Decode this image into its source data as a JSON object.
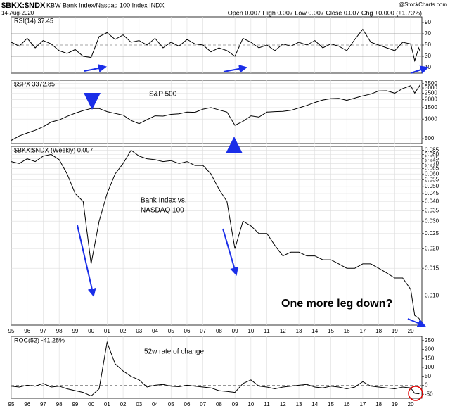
{
  "header": {
    "symbol": "$BKX:$NDX",
    "name": "KBW Bank Index/Nasdaq 100 Index INDX",
    "date": "14-Aug-2020",
    "source": "@StockCharts.com",
    "quote": "Open 0.007 High 0.007 Low 0.007 Close 0.007 Chg +0.000 (+1.73%)"
  },
  "chart_data": [
    {
      "type": "line",
      "label": "RSI(14) 37.45",
      "color": "#000000",
      "x": [
        1995,
        1995.5,
        1996,
        1996.5,
        1997,
        1997.5,
        1998,
        1998.5,
        1999,
        1999.5,
        2000,
        2000.5,
        2001,
        2001.5,
        2002,
        2002.5,
        2003,
        2003.5,
        2004,
        2004.5,
        2005,
        2005.5,
        2006,
        2006.5,
        2007,
        2007.5,
        2008,
        2008.5,
        2009,
        2009.5,
        2010,
        2010.5,
        2011,
        2011.5,
        2012,
        2012.5,
        2013,
        2013.5,
        2014,
        2014.5,
        2015,
        2015.5,
        2016,
        2016.5,
        2017,
        2017.5,
        2018,
        2018.5,
        2019,
        2019.5,
        2020,
        2020.25,
        2020.5,
        2020.6
      ],
      "values": [
        55,
        48,
        62,
        45,
        58,
        52,
        40,
        35,
        42,
        30,
        28,
        65,
        72,
        60,
        68,
        55,
        58,
        50,
        62,
        45,
        55,
        48,
        60,
        52,
        50,
        38,
        45,
        40,
        30,
        62,
        55,
        45,
        50,
        40,
        52,
        48,
        55,
        50,
        58,
        45,
        52,
        48,
        40,
        60,
        78,
        55,
        50,
        45,
        40,
        55,
        52,
        22,
        45,
        37.45
      ],
      "ylim": [
        0,
        100
      ],
      "yticks": [
        10,
        30,
        50,
        70,
        90
      ],
      "grid_values": [
        30,
        50,
        70
      ]
    },
    {
      "type": "line",
      "label": "$SPX 3372.85",
      "color": "#000000",
      "log": true,
      "x": [
        1995,
        1995.5,
        1996,
        1996.5,
        1997,
        1997.5,
        1998,
        1998.5,
        1999,
        1999.5,
        2000,
        2000.5,
        2001,
        2001.5,
        2002,
        2002.5,
        2003,
        2003.5,
        2004,
        2004.5,
        2005,
        2005.5,
        2006,
        2006.5,
        2007,
        2007.5,
        2008,
        2008.5,
        2009,
        2009.5,
        2010,
        2010.5,
        2011,
        2011.5,
        2012,
        2012.5,
        2013,
        2013.5,
        2014,
        2014.5,
        2015,
        2015.5,
        2016,
        2016.5,
        2017,
        2017.5,
        2018,
        2018.5,
        2019,
        2019.5,
        2020,
        2020.25,
        2020.5,
        2020.6
      ],
      "values": [
        470,
        550,
        610,
        670,
        760,
        900,
        970,
        1100,
        1230,
        1350,
        1450,
        1450,
        1300,
        1220,
        1150,
        950,
        850,
        980,
        1120,
        1110,
        1180,
        1200,
        1280,
        1270,
        1420,
        1500,
        1380,
        1280,
        800,
        920,
        1120,
        1070,
        1280,
        1300,
        1310,
        1360,
        1480,
        1620,
        1800,
        1960,
        2060,
        2080,
        1940,
        2100,
        2270,
        2420,
        2700,
        2720,
        2500,
        2940,
        3250,
        2500,
        3100,
        3372.85
      ],
      "ylim": [
        420,
        3950
      ],
      "yticks": [
        500,
        1000,
        1500,
        2000,
        2500,
        3000,
        3500
      ],
      "annotations": [
        {
          "text": "S&P 500",
          "color": "#000000"
        }
      ]
    },
    {
      "type": "line",
      "label": "$BKX:$NDX (Weekly) 0.007",
      "color": "#000000",
      "log": true,
      "x": [
        1995,
        1995.5,
        1996,
        1996.5,
        1997,
        1997.5,
        1998,
        1998.5,
        1999,
        1999.5,
        2000,
        2000.5,
        2001,
        2001.5,
        2002,
        2002.5,
        2003,
        2003.5,
        2004,
        2004.5,
        2005,
        2005.5,
        2006,
        2006.5,
        2007,
        2007.5,
        2008,
        2008.5,
        2009,
        2009.5,
        2010,
        2010.5,
        2011,
        2011.5,
        2012,
        2012.5,
        2013,
        2013.5,
        2014,
        2014.5,
        2015,
        2015.5,
        2016,
        2016.5,
        2017,
        2017.5,
        2018,
        2018.5,
        2019,
        2019.5,
        2020,
        2020.25,
        2020.5,
        2020.6
      ],
      "values": [
        0.072,
        0.07,
        0.075,
        0.072,
        0.078,
        0.08,
        0.074,
        0.06,
        0.045,
        0.04,
        0.016,
        0.03,
        0.045,
        0.06,
        0.07,
        0.085,
        0.078,
        0.075,
        0.074,
        0.072,
        0.073,
        0.07,
        0.072,
        0.068,
        0.068,
        0.06,
        0.048,
        0.04,
        0.02,
        0.03,
        0.028,
        0.025,
        0.025,
        0.021,
        0.018,
        0.019,
        0.019,
        0.018,
        0.018,
        0.017,
        0.017,
        0.016,
        0.015,
        0.015,
        0.016,
        0.016,
        0.015,
        0.014,
        0.013,
        0.013,
        0.011,
        0.0075,
        0.0072,
        0.007
      ],
      "ylim": [
        0.0065,
        0.09
      ],
      "yticks": [
        0.085,
        {
          "value": 0.08,
          "label": "0.080"
        },
        0.075,
        {
          "value": 0.07,
          "label": "0.070"
        },
        0.065,
        {
          "value": 0.06,
          "label": "0.060"
        },
        0.055,
        {
          "value": 0.05,
          "label": "0.050"
        },
        0.045,
        {
          "value": 0.04,
          "label": "0.040"
        },
        0.035,
        {
          "value": 0.03,
          "label": "0.030"
        },
        0.025,
        {
          "value": 0.02,
          "label": "0.020"
        },
        0.015,
        {
          "value": 0.01,
          "label": "0.010"
        }
      ],
      "xlim": [
        1995,
        2020.7
      ],
      "xticks": [
        {
          "value": 1995,
          "label": "95"
        },
        {
          "value": 1996,
          "label": "96"
        },
        {
          "value": 1997,
          "label": "97"
        },
        {
          "value": 1998,
          "label": "98"
        },
        {
          "value": 1999,
          "label": "99"
        },
        {
          "value": 2000,
          "label": "00"
        },
        {
          "value": 2001,
          "label": "01"
        },
        {
          "value": 2002,
          "label": "02"
        },
        {
          "value": 2003,
          "label": "03"
        },
        {
          "value": 2004,
          "label": "04"
        },
        {
          "value": 2005,
          "label": "05"
        },
        {
          "value": 2006,
          "label": "06"
        },
        {
          "value": 2007,
          "label": "07"
        },
        {
          "value": 2008,
          "label": "08"
        },
        {
          "value": 2009,
          "label": "09"
        },
        {
          "value": 2010,
          "label": "10"
        },
        {
          "value": 2011,
          "label": "11"
        },
        {
          "value": 2012,
          "label": "12"
        },
        {
          "value": 2013,
          "label": "13"
        },
        {
          "value": 2014,
          "label": "14"
        },
        {
          "value": 2015,
          "label": "15"
        },
        {
          "value": 2016,
          "label": "16"
        },
        {
          "value": 2017,
          "label": "17"
        },
        {
          "value": 2018,
          "label": "18"
        },
        {
          "value": 2019,
          "label": "19"
        },
        {
          "value": 2020,
          "label": "20"
        }
      ],
      "annotations": [
        {
          "text": "Bank Index vs.",
          "color": "#000000"
        },
        {
          "text": "NASDAQ 100",
          "color": "#000000"
        },
        {
          "text": "One more leg down?",
          "color": "#e00000"
        }
      ]
    },
    {
      "type": "line",
      "label": "ROC(52) -41.28%",
      "color": "#000000",
      "x": [
        1995,
        1995.5,
        1996,
        1996.5,
        1997,
        1997.5,
        1998,
        1998.5,
        1999,
        1999.5,
        2000,
        2000.5,
        2001,
        2001.5,
        2002,
        2002.5,
        2003,
        2003.5,
        2004,
        2004.5,
        2005,
        2005.5,
        2006,
        2006.5,
        2007,
        2007.5,
        2008,
        2008.5,
        2009,
        2009.5,
        2010,
        2010.5,
        2011,
        2011.5,
        2012,
        2012.5,
        2013,
        2013.5,
        2014,
        2014.5,
        2015,
        2015.5,
        2016,
        2016.5,
        2017,
        2017.5,
        2018,
        2018.5,
        2019,
        2019.5,
        2020,
        2020.25,
        2020.5,
        2020.6
      ],
      "values": [
        -5,
        -10,
        0,
        -5,
        10,
        -10,
        -5,
        -20,
        -30,
        -40,
        -60,
        -20,
        240,
        120,
        80,
        50,
        30,
        -10,
        0,
        5,
        -5,
        -8,
        0,
        -5,
        -10,
        -15,
        -30,
        -35,
        -40,
        10,
        30,
        -5,
        -10,
        -20,
        -10,
        -5,
        0,
        5,
        -10,
        -15,
        -5,
        -10,
        -20,
        -10,
        20,
        -5,
        -10,
        -15,
        -20,
        -10,
        -15,
        -45,
        -48,
        -41.28
      ],
      "ylim": [
        -73,
        273
      ],
      "yticks": [
        -50,
        0,
        50,
        100,
        150,
        200,
        250
      ],
      "grid_values": [
        0
      ],
      "xlim": [
        1995,
        2020.7
      ],
      "xticks": [
        {
          "value": 1995,
          "label": "95"
        },
        {
          "value": 1996,
          "label": "96"
        },
        {
          "value": 1997,
          "label": "97"
        },
        {
          "value": 1998,
          "label": "98"
        },
        {
          "value": 1999,
          "label": "99"
        },
        {
          "value": 2000,
          "label": "00"
        },
        {
          "value": 2001,
          "label": "01"
        },
        {
          "value": 2002,
          "label": "02"
        },
        {
          "value": 2003,
          "label": "03"
        },
        {
          "value": 2004,
          "label": "04"
        },
        {
          "value": 2005,
          "label": "05"
        },
        {
          "value": 2006,
          "label": "06"
        },
        {
          "value": 2007,
          "label": "07"
        },
        {
          "value": 2008,
          "label": "08"
        },
        {
          "value": 2009,
          "label": "09"
        },
        {
          "value": 2010,
          "label": "10"
        },
        {
          "value": 2011,
          "label": "11"
        },
        {
          "value": 2012,
          "label": "12"
        },
        {
          "value": 2013,
          "label": "13"
        },
        {
          "value": 2014,
          "label": "14"
        },
        {
          "value": 2015,
          "label": "15"
        },
        {
          "value": 2016,
          "label": "16"
        },
        {
          "value": 2017,
          "label": "17"
        },
        {
          "value": 2018,
          "label": "18"
        },
        {
          "value": 2019,
          "label": "19"
        },
        {
          "value": 2020,
          "label": "20"
        }
      ],
      "annotations": [
        {
          "text": "52w rate of change",
          "color": "#000000"
        }
      ]
    }
  ]
}
